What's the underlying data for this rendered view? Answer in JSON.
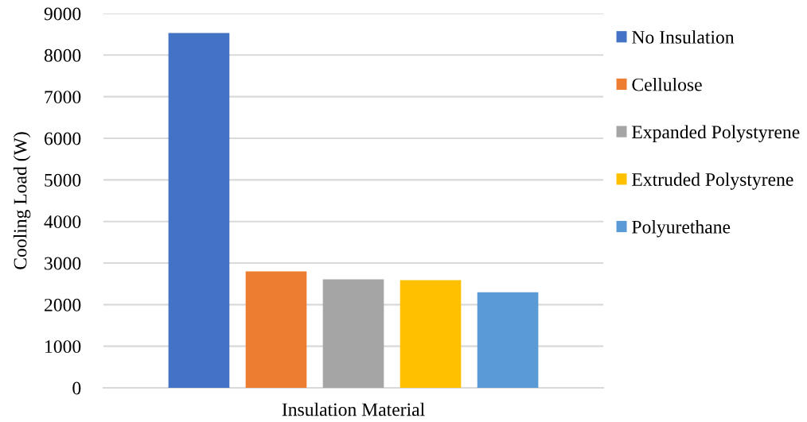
{
  "chart_data": {
    "type": "bar",
    "xlabel": "Insulation Material",
    "ylabel": "Cooling Load (W)",
    "categories": [
      null
    ],
    "series": [
      {
        "name": "No Insulation",
        "color": "#4472c4",
        "values": [
          8530
        ]
      },
      {
        "name": "Cellulose",
        "color": "#ed7d31",
        "values": [
          2800
        ]
      },
      {
        "name": "Expanded Polystyrene",
        "color": "#a5a5a5",
        "values": [
          2610
        ]
      },
      {
        "name": "Extruded Polystyrene",
        "color": "#ffc000",
        "values": [
          2590
        ]
      },
      {
        "name": "Polyurethane",
        "color": "#5b9bd5",
        "values": [
          2300
        ]
      }
    ],
    "ylim": [
      0,
      9000
    ],
    "yticks": [
      0,
      1000,
      2000,
      3000,
      4000,
      5000,
      6000,
      7000,
      8000,
      9000
    ],
    "grid": "y",
    "legend": "right"
  }
}
